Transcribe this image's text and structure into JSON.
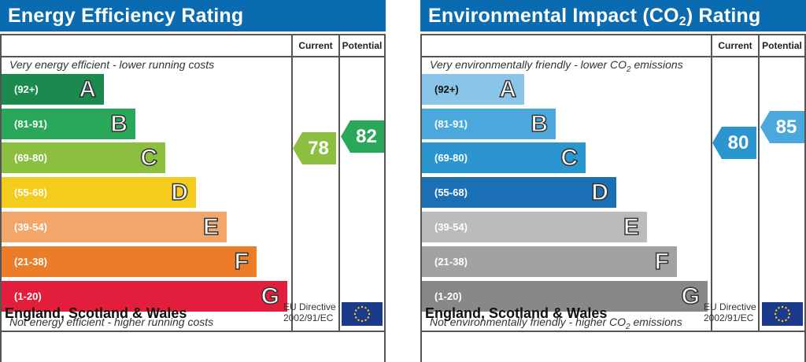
{
  "chart_data": [
    {
      "type": "bar",
      "title": "Energy Efficiency Rating",
      "columns": [
        "Current",
        "Potential"
      ],
      "top_description": "Very energy efficient - lower running costs",
      "bottom_description": "Not energy efficient - higher running costs",
      "bands": [
        {
          "range": "(92+)",
          "letter": "A",
          "color": "#1a8a4f",
          "text_color": "#ffffff"
        },
        {
          "range": "(81-91)",
          "letter": "B",
          "color": "#2aa85a",
          "text_color": "#ffffff"
        },
        {
          "range": "(69-80)",
          "letter": "C",
          "color": "#8cbf3f",
          "text_color": "#ffffff"
        },
        {
          "range": "(55-68)",
          "letter": "D",
          "color": "#f5cc1b",
          "text_color": "#ffffff"
        },
        {
          "range": "(39-54)",
          "letter": "E",
          "color": "#f2a66a",
          "text_color": "#ffffff"
        },
        {
          "range": "(21-38)",
          "letter": "F",
          "color": "#ec7c27",
          "text_color": "#ffffff"
        },
        {
          "range": "(1-20)",
          "letter": "G",
          "color": "#e31e3c",
          "text_color": "#ffffff"
        }
      ],
      "current": {
        "value": "78",
        "color": "#8cbf3f"
      },
      "potential": {
        "value": "82",
        "color": "#2aa85a"
      },
      "footer": "England, Scotland & Wales",
      "eu_line1": "EU Directive",
      "eu_line2": "2002/91/EC"
    },
    {
      "type": "bar",
      "title_pre": "Environmental Impact (CO",
      "title_sub": "2",
      "title_post": ") Rating",
      "columns": [
        "Current",
        "Potential"
      ],
      "top_description_pre": "Very environmentally friendly - lower CO",
      "top_description_sub": "2",
      "top_description_post": " emissions",
      "bottom_description_pre": "Not environmentally friendly - higher CO",
      "bottom_description_sub": "2",
      "bottom_description_post": " emissions",
      "bands": [
        {
          "range": "(92+)",
          "letter": "A",
          "color": "#8ac4e8",
          "text_color": "#111111"
        },
        {
          "range": "(81-91)",
          "letter": "B",
          "color": "#4aa8dd",
          "text_color": "#ffffff"
        },
        {
          "range": "(69-80)",
          "letter": "C",
          "color": "#2a95cf",
          "text_color": "#ffffff"
        },
        {
          "range": "(55-68)",
          "letter": "D",
          "color": "#1a6fb5",
          "text_color": "#ffffff"
        },
        {
          "range": "(39-54)",
          "letter": "E",
          "color": "#bbbbbb",
          "text_color": "#ffffff"
        },
        {
          "range": "(21-38)",
          "letter": "F",
          "color": "#a2a2a2",
          "text_color": "#ffffff"
        },
        {
          "range": "(1-20)",
          "letter": "G",
          "color": "#888888",
          "text_color": "#ffffff"
        }
      ],
      "current": {
        "value": "80",
        "color": "#2a95cf"
      },
      "potential": {
        "value": "85",
        "color": "#4aa8dd"
      },
      "footer": "England, Scotland & Wales",
      "eu_line1": "EU Directive",
      "eu_line2": "2002/91/EC"
    }
  ]
}
